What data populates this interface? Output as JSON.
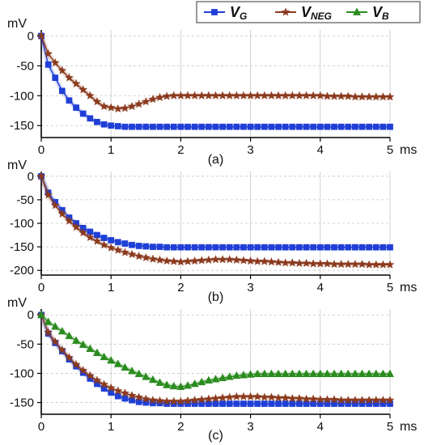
{
  "legend": {
    "items": [
      {
        "main": "V",
        "sub": "G",
        "color": "#1f3fd6",
        "marker": "square"
      },
      {
        "main": "V",
        "sub": "NEG",
        "color": "#8b3a1e",
        "marker": "star"
      },
      {
        "main": "V",
        "sub": "B",
        "color": "#2a8c1e",
        "marker": "triangle"
      }
    ]
  },
  "chart_data": [
    {
      "type": "line",
      "panel_label": "(a)",
      "y_unit": "mV",
      "x_unit": "ms",
      "xlim": [
        0,
        5
      ],
      "ylim": [
        -170,
        10
      ],
      "x_ticks": [
        "0",
        "1",
        "2",
        "3",
        "4",
        "5"
      ],
      "y_ticks": [
        "0",
        "-50",
        "-100",
        "-150"
      ],
      "y_tick_values": [
        0,
        -50,
        -100,
        -150
      ],
      "grid": true,
      "x": [
        0,
        0.1,
        0.2,
        0.3,
        0.4,
        0.5,
        0.6,
        0.7,
        0.8,
        0.9,
        1.0,
        1.1,
        1.2,
        1.3,
        1.4,
        1.5,
        1.6,
        1.7,
        1.8,
        1.9,
        2.0,
        2.1,
        2.2,
        2.3,
        2.4,
        2.5,
        2.6,
        2.7,
        2.8,
        2.9,
        3.0,
        3.1,
        3.2,
        3.3,
        3.4,
        3.5,
        3.6,
        3.7,
        3.8,
        3.9,
        4.0,
        4.1,
        4.2,
        4.3,
        4.4,
        4.5,
        4.6,
        4.7,
        4.8,
        4.9,
        5.0
      ],
      "series": [
        {
          "name": "V_G",
          "color": "#1f3fd6",
          "marker": "square",
          "values": [
            0,
            -48,
            -70,
            -92,
            -108,
            -120,
            -130,
            -138,
            -144,
            -148,
            -150,
            -151,
            -152,
            -152,
            -152,
            -152,
            -152,
            -152,
            -152,
            -152,
            -152,
            -152,
            -152,
            -152,
            -152,
            -152,
            -152,
            -152,
            -152,
            -152,
            -152,
            -152,
            -152,
            -152,
            -152,
            -152,
            -152,
            -152,
            -152,
            -152,
            -152,
            -152,
            -152,
            -152,
            -152,
            -152,
            -152,
            -152,
            -152,
            -152,
            -152
          ]
        },
        {
          "name": "V_NEG",
          "color": "#8b3a1e",
          "marker": "star",
          "values": [
            0,
            -30,
            -45,
            -58,
            -70,
            -80,
            -90,
            -100,
            -110,
            -118,
            -120,
            -122,
            -121,
            -118,
            -114,
            -110,
            -106,
            -103,
            -101,
            -100,
            -100,
            -100,
            -100,
            -100,
            -100,
            -100,
            -100,
            -100,
            -100,
            -100,
            -100,
            -100,
            -100,
            -100,
            -100,
            -100,
            -100,
            -100,
            -100,
            -100,
            -100,
            -101,
            -101,
            -101,
            -101,
            -102,
            -102,
            -102,
            -102,
            -102,
            -102
          ]
        }
      ]
    },
    {
      "type": "line",
      "panel_label": "(b)",
      "y_unit": "mV",
      "x_unit": "ms",
      "xlim": [
        0,
        5
      ],
      "ylim": [
        -210,
        10
      ],
      "x_ticks": [
        "0",
        "1",
        "2",
        "3",
        "4",
        "5"
      ],
      "y_ticks": [
        "0",
        "-50",
        "-100",
        "-150",
        "-200"
      ],
      "y_tick_values": [
        0,
        -50,
        -100,
        -150,
        -200
      ],
      "grid": true,
      "x": [
        0,
        0.1,
        0.2,
        0.3,
        0.4,
        0.5,
        0.6,
        0.7,
        0.8,
        0.9,
        1.0,
        1.1,
        1.2,
        1.3,
        1.4,
        1.5,
        1.6,
        1.7,
        1.8,
        1.9,
        2.0,
        2.1,
        2.2,
        2.3,
        2.4,
        2.5,
        2.6,
        2.7,
        2.8,
        2.9,
        3.0,
        3.1,
        3.2,
        3.3,
        3.4,
        3.5,
        3.6,
        3.7,
        3.8,
        3.9,
        4.0,
        4.1,
        4.2,
        4.3,
        4.4,
        4.5,
        4.6,
        4.7,
        4.8,
        4.9,
        5.0
      ],
      "series": [
        {
          "name": "V_G",
          "color": "#1f3fd6",
          "marker": "square",
          "values": [
            0,
            -35,
            -55,
            -72,
            -88,
            -100,
            -110,
            -118,
            -125,
            -131,
            -136,
            -140,
            -143,
            -146,
            -148,
            -149,
            -150,
            -150,
            -151,
            -151,
            -151,
            -151,
            -151,
            -151,
            -151,
            -151,
            -151,
            -151,
            -151,
            -151,
            -151,
            -151,
            -151,
            -151,
            -151,
            -151,
            -151,
            -151,
            -151,
            -151,
            -151,
            -151,
            -151,
            -151,
            -151,
            -151,
            -151,
            -151,
            -151,
            -151,
            -151
          ]
        },
        {
          "name": "V_NEG",
          "color": "#8b3a1e",
          "marker": "star",
          "values": [
            0,
            -40,
            -62,
            -80,
            -95,
            -108,
            -120,
            -130,
            -138,
            -146,
            -152,
            -157,
            -162,
            -166,
            -170,
            -173,
            -176,
            -178,
            -180,
            -181,
            -182,
            -181,
            -180,
            -179,
            -178,
            -177,
            -177,
            -177,
            -178,
            -179,
            -180,
            -181,
            -181,
            -182,
            -183,
            -184,
            -184,
            -185,
            -185,
            -186,
            -186,
            -186,
            -187,
            -187,
            -187,
            -187,
            -187,
            -188,
            -188,
            -188,
            -188
          ]
        }
      ]
    },
    {
      "type": "line",
      "panel_label": "(c)",
      "y_unit": "mV",
      "x_unit": "ms",
      "xlim": [
        0,
        5
      ],
      "ylim": [
        -170,
        10
      ],
      "x_ticks": [
        "0",
        "1",
        "2",
        "3",
        "4",
        "5"
      ],
      "y_ticks": [
        "0",
        "-50",
        "-100",
        "-150"
      ],
      "y_tick_values": [
        0,
        -50,
        -100,
        -150
      ],
      "grid": true,
      "x": [
        0,
        0.1,
        0.2,
        0.3,
        0.4,
        0.5,
        0.6,
        0.7,
        0.8,
        0.9,
        1.0,
        1.1,
        1.2,
        1.3,
        1.4,
        1.5,
        1.6,
        1.7,
        1.8,
        1.9,
        2.0,
        2.1,
        2.2,
        2.3,
        2.4,
        2.5,
        2.6,
        2.7,
        2.8,
        2.9,
        3.0,
        3.1,
        3.2,
        3.3,
        3.4,
        3.5,
        3.6,
        3.7,
        3.8,
        3.9,
        4.0,
        4.1,
        4.2,
        4.3,
        4.4,
        4.5,
        4.6,
        4.7,
        4.8,
        4.9,
        5.0
      ],
      "series": [
        {
          "name": "V_G",
          "color": "#1f3fd6",
          "marker": "square",
          "values": [
            0,
            -32,
            -48,
            -62,
            -76,
            -88,
            -99,
            -109,
            -118,
            -126,
            -133,
            -139,
            -143,
            -146,
            -149,
            -150,
            -151,
            -151,
            -152,
            -152,
            -152,
            -152,
            -152,
            -152,
            -152,
            -152,
            -152,
            -152,
            -152,
            -152,
            -152,
            -152,
            -152,
            -152,
            -152,
            -152,
            -152,
            -152,
            -152,
            -152,
            -152,
            -152,
            -152,
            -152,
            -152,
            -152,
            -152,
            -152,
            -152,
            -152,
            -152
          ]
        },
        {
          "name": "V_NEG",
          "color": "#8b3a1e",
          "marker": "star",
          "values": [
            0,
            -30,
            -46,
            -60,
            -73,
            -85,
            -95,
            -104,
            -112,
            -119,
            -125,
            -130,
            -134,
            -138,
            -141,
            -144,
            -146,
            -147,
            -148,
            -148,
            -148,
            -147,
            -146,
            -145,
            -144,
            -143,
            -142,
            -141,
            -140,
            -140,
            -140,
            -140,
            -141,
            -141,
            -142,
            -142,
            -143,
            -143,
            -144,
            -144,
            -145,
            -145,
            -145,
            -146,
            -146,
            -146,
            -146,
            -146,
            -146,
            -146,
            -146
          ]
        },
        {
          "name": "V_B",
          "color": "#2a8c1e",
          "marker": "triangle",
          "values": [
            0,
            -12,
            -20,
            -28,
            -36,
            -44,
            -51,
            -58,
            -65,
            -72,
            -78,
            -84,
            -90,
            -96,
            -101,
            -106,
            -111,
            -116,
            -120,
            -122,
            -123,
            -121,
            -118,
            -115,
            -112,
            -110,
            -108,
            -106,
            -104,
            -103,
            -102,
            -101,
            -101,
            -101,
            -101,
            -101,
            -101,
            -101,
            -101,
            -101,
            -101,
            -101,
            -101,
            -101,
            -101,
            -101,
            -101,
            -101,
            -101,
            -101,
            -101
          ]
        }
      ]
    }
  ]
}
